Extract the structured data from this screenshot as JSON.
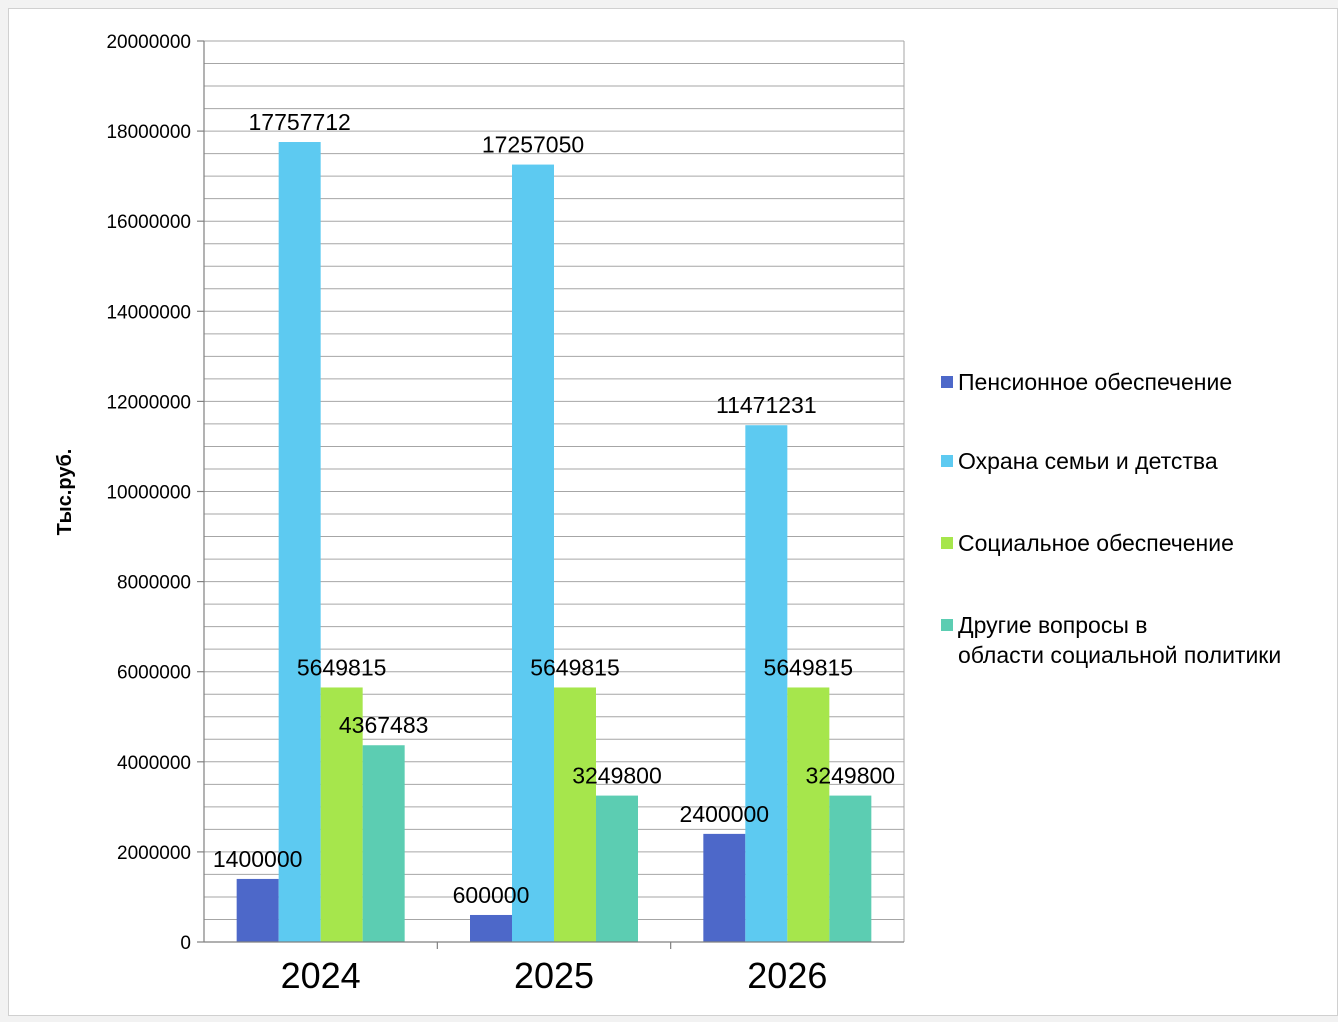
{
  "chart_data": {
    "type": "bar",
    "categories": [
      "2024",
      "2025",
      "2026"
    ],
    "series": [
      {
        "name": "Пенсионное обеспечение",
        "color": "#4d68c9",
        "values": [
          1400000,
          600000,
          2400000
        ]
      },
      {
        "name": "Охрана семьи и детства",
        "color": "#5dcaf1",
        "values": [
          17757712,
          17257050,
          11471231
        ]
      },
      {
        "name": "Социальное обеспечение",
        "color": "#a6e64c",
        "values": [
          5649815,
          5649815,
          5649815
        ]
      },
      {
        "name": "Другие вопросы в области социальной политики",
        "color": "#5ccdb2",
        "values": [
          4367483,
          3249800,
          3249800
        ]
      }
    ],
    "ylabel": "Тыс.руб.",
    "ylim": [
      0,
      20000000
    ],
    "y_ticks": [
      "0",
      "2000000",
      "4000000",
      "6000000",
      "8000000",
      "10000000",
      "12000000",
      "14000000",
      "16000000",
      "18000000",
      "20000000"
    ],
    "grid": true,
    "legend_position": "right"
  }
}
